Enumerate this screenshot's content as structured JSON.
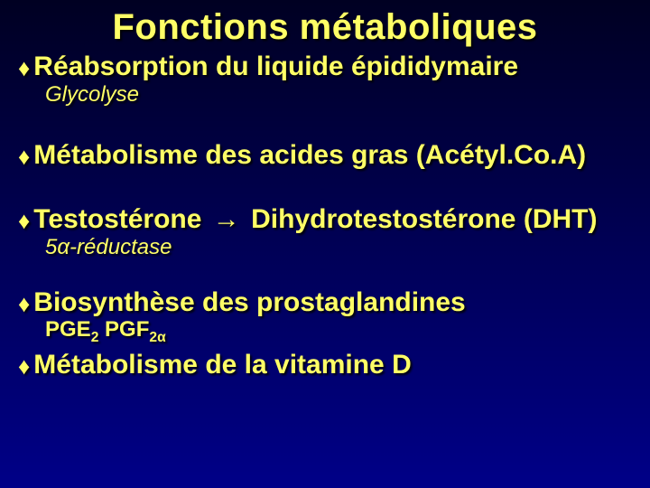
{
  "slide": {
    "background_gradient": [
      "#000022",
      "#000055",
      "#000088"
    ],
    "text_color": "#ffff66",
    "shadow_color": "#000000",
    "font_family": "Comic Sans MS",
    "title": "Fonctions métaboliques",
    "title_fontsize": 40,
    "bullet_char": "♦",
    "bullet_fontsize": 30,
    "sub_fontsize": 24,
    "items": {
      "b1": "Réabsorption du liquide épididymaire",
      "s1": "Glycolyse",
      "b2": "Métabolisme des acides gras (Acétyl.Co.A)",
      "b3a": "Testostérone ",
      "arrow": "→",
      "b3b": " Dihydrotestostérone (DHT)",
      "s3": "5α-réductase",
      "b4": "Biosynthèse des prostaglandines",
      "s4": {
        "pge_label": "PGE",
        "pge_sub": "2",
        "spacer": "   ",
        "pgf_label": "PGF",
        "pgf_sub": "2α"
      },
      "b5": "Métabolisme de la vitamine D"
    }
  }
}
